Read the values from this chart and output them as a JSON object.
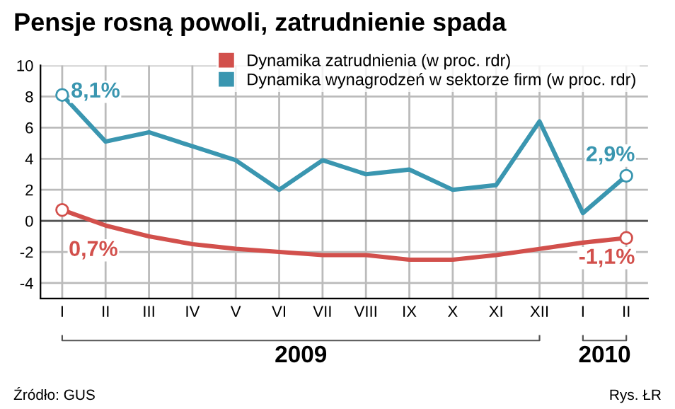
{
  "chart_data": {
    "type": "line",
    "title": "Pensje rosną powoli, zatrudnienie spada",
    "categories": [
      "I",
      "II",
      "III",
      "IV",
      "V",
      "VI",
      "VII",
      "VIII",
      "IX",
      "X",
      "XI",
      "XII",
      "I",
      "II"
    ],
    "series": [
      {
        "name": "Dynamika zatrudnienia (w proc. rdr)",
        "color": "#d2504c",
        "values": [
          0.7,
          -0.3,
          -1.0,
          -1.5,
          -1.8,
          -2.0,
          -2.2,
          -2.2,
          -2.5,
          -2.5,
          -2.2,
          -1.8,
          -1.4,
          -1.1
        ],
        "value_labels": [
          "0,7%",
          null,
          null,
          null,
          null,
          null,
          null,
          null,
          null,
          null,
          null,
          null,
          null,
          "-1,1%"
        ]
      },
      {
        "name": "Dynamika wynagrodzeń w sektorze firm (w proc. rdr)",
        "color": "#3a96b0",
        "values": [
          8.1,
          5.1,
          5.7,
          4.8,
          3.9,
          2.0,
          3.9,
          3.0,
          3.3,
          2.0,
          2.3,
          6.4,
          0.5,
          2.9
        ],
        "value_labels": [
          "8,1%",
          null,
          null,
          null,
          null,
          null,
          null,
          null,
          null,
          null,
          null,
          null,
          null,
          "2,9%"
        ]
      }
    ],
    "ylim": [
      -5,
      10
    ],
    "yticks": [
      -4,
      -2,
      0,
      2,
      4,
      6,
      8,
      10
    ],
    "grid": true,
    "legend": "top",
    "annotations": [
      "2009",
      "2010",
      "Źródło: GUS",
      "Rys. ŁR"
    ]
  }
}
